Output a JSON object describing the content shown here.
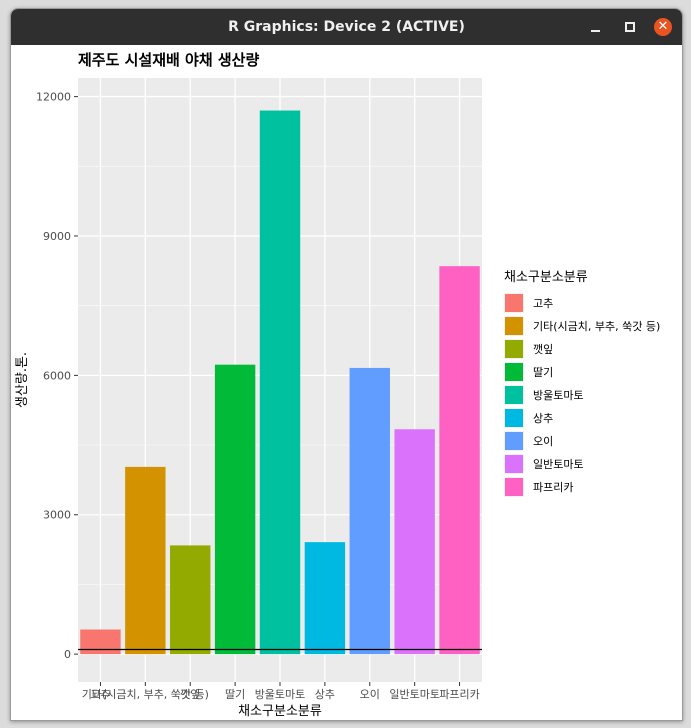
{
  "window": {
    "title": "R Graphics: Device 2 (ACTIVE)",
    "close_glyph": "✕"
  },
  "chart_data": {
    "type": "bar",
    "title": "제주도 시설재배 야채 생산량",
    "xlabel": "채소구분소분류",
    "ylabel": "생산량.톤.",
    "ylim": [
      -600,
      12400
    ],
    "yticks": [
      0,
      3000,
      6000,
      9000,
      12000
    ],
    "grid": true,
    "hline": 100,
    "categories": [
      "고추",
      "기타(시금치, 부추, 쑥갓 등)",
      "깻잎",
      "딸기",
      "방울토마토",
      "상추",
      "오이",
      "일반토마토",
      "파프리카"
    ],
    "values": [
      530,
      4030,
      2340,
      6230,
      11700,
      2410,
      6160,
      4840,
      8350
    ],
    "colors": [
      "#F8766D",
      "#D39200",
      "#93AA00",
      "#00BA38",
      "#00C19F",
      "#00B9E3",
      "#619CFF",
      "#DB72FB",
      "#FF61C3"
    ],
    "legend": {
      "title": "채소구분소분류",
      "position": "right"
    }
  }
}
